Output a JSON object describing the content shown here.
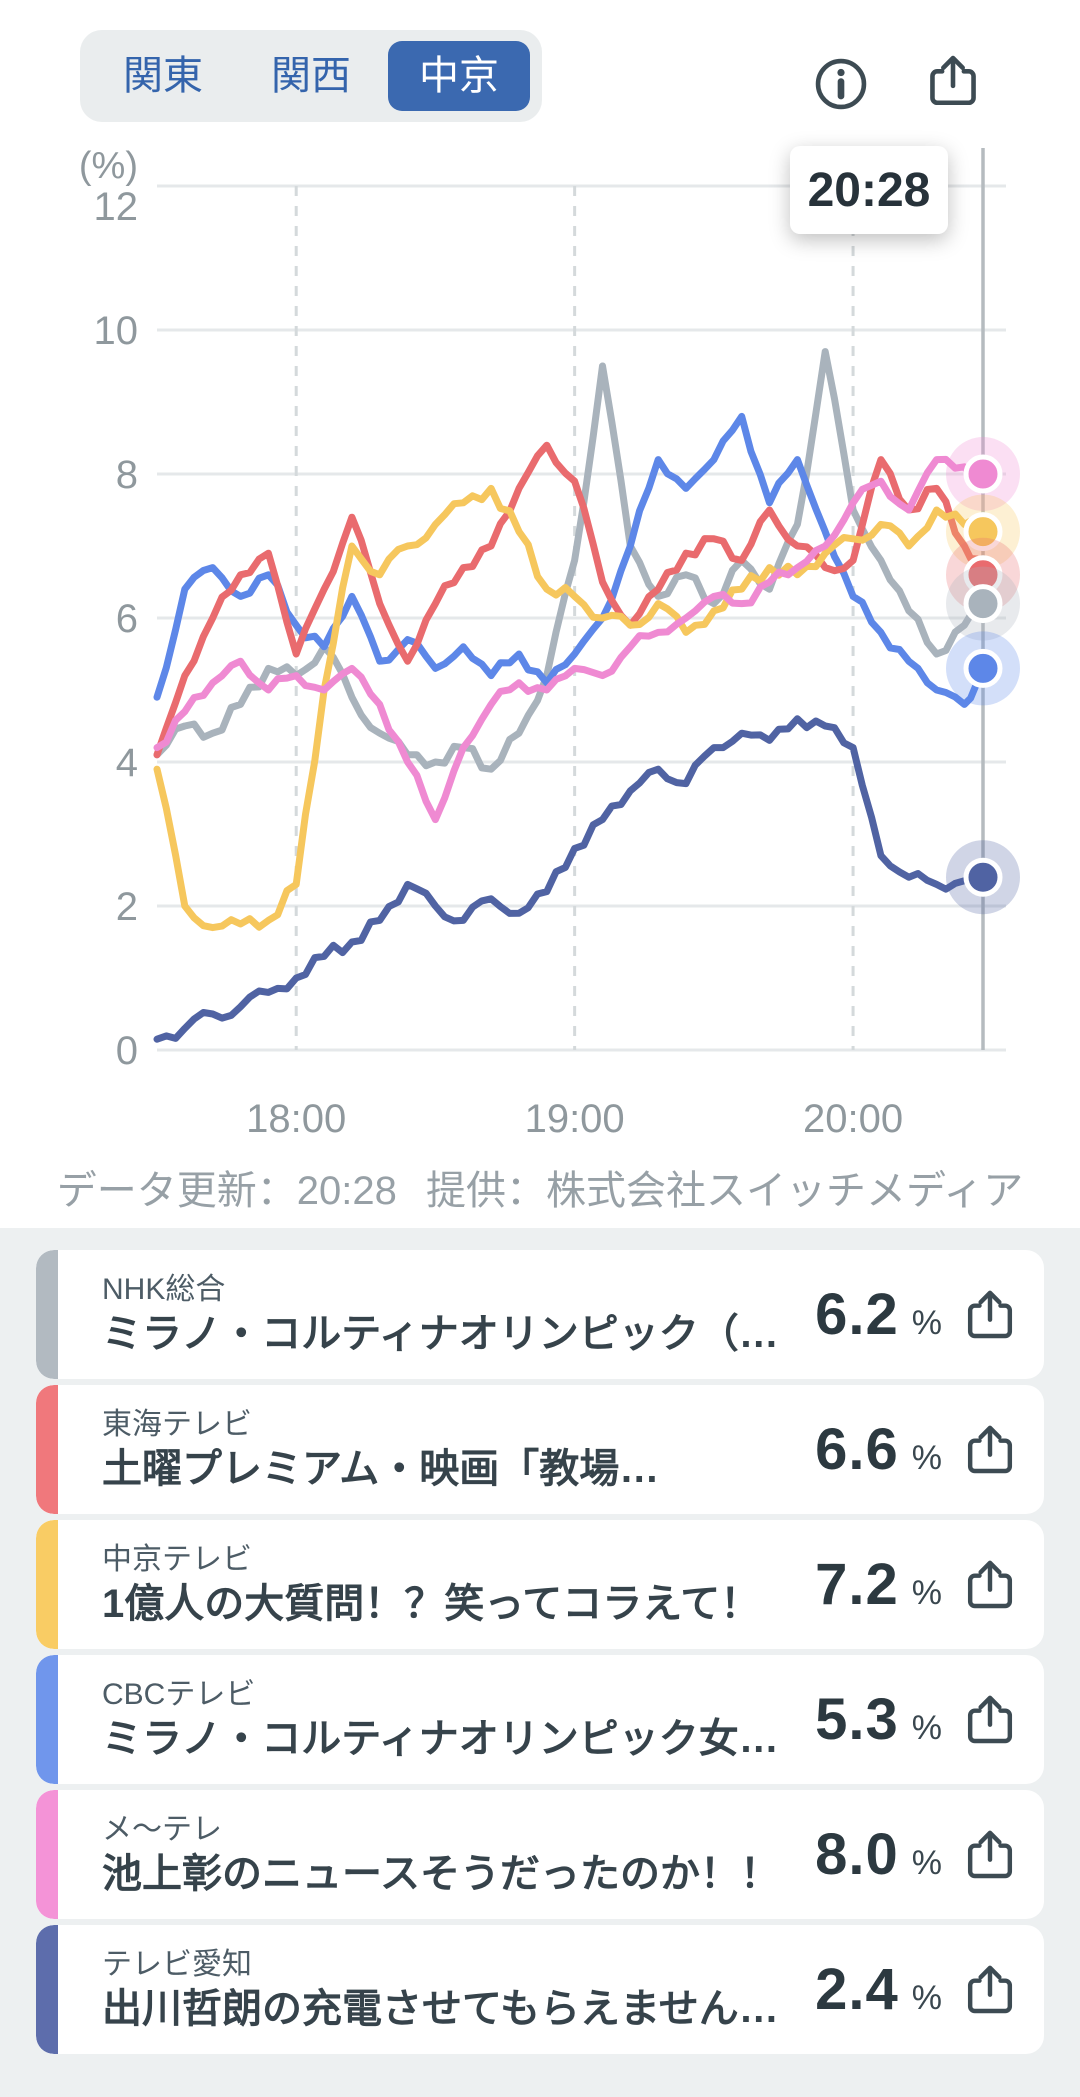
{
  "tabs": {
    "items": [
      {
        "label": "関東",
        "selected": false
      },
      {
        "label": "関西",
        "selected": false
      },
      {
        "label": "中京",
        "selected": true
      }
    ],
    "selected_bg": "#3b69b0"
  },
  "header": {
    "time_badge": "20:28",
    "info_icon": "info-icon",
    "share_icon": "share-icon"
  },
  "footer": {
    "updated": "データ更新：20:28",
    "provider": "提供：株式会社スイッチメディア"
  },
  "chart_data": {
    "type": "line",
    "unit_label": "(%)",
    "ylim": [
      0,
      12
    ],
    "y_ticks": [
      0,
      2,
      4,
      6,
      8,
      10,
      12
    ],
    "x_ticks": [
      {
        "label": "18:00",
        "min": 30
      },
      {
        "label": "19:00",
        "min": 90
      },
      {
        "label": "20:00",
        "min": 150
      }
    ],
    "x_range_min": [
      0,
      178
    ],
    "cursor_min": 178,
    "cursor_label": "20:28",
    "grid_color": "#e5e8ea",
    "dash_color": "#d4d9db",
    "cursor_color": "#b5bbbf",
    "axis_text_color": "#8f989d",
    "x_min": [
      0,
      6,
      12,
      18,
      24,
      30,
      36,
      42,
      48,
      54,
      60,
      66,
      72,
      78,
      84,
      90,
      96,
      102,
      108,
      114,
      120,
      126,
      132,
      138,
      144,
      150,
      156,
      162,
      168,
      174,
      178
    ],
    "series": [
      {
        "name": "NHK総合",
        "color": "#a9b3bc",
        "values": [
          4.1,
          4.5,
          4.4,
          4.8,
          5.3,
          5.2,
          5.6,
          4.9,
          4.4,
          4.1,
          4.0,
          4.2,
          3.9,
          4.4,
          5.2,
          6.8,
          9.5,
          7.0,
          6.3,
          6.6,
          6.2,
          6.8,
          6.4,
          7.3,
          9.7,
          7.5,
          6.8,
          6.1,
          5.5,
          5.9,
          6.2
        ]
      },
      {
        "name": "CBCテレビ",
        "color": "#5d87e8",
        "values": [
          4.9,
          6.4,
          6.7,
          6.3,
          6.6,
          5.9,
          5.6,
          6.3,
          5.4,
          5.7,
          5.3,
          5.6,
          5.2,
          5.5,
          5.1,
          5.5,
          6.0,
          7.0,
          8.2,
          7.8,
          8.2,
          8.8,
          7.6,
          8.2,
          7.2,
          6.3,
          5.8,
          5.4,
          5.0,
          4.8,
          5.3
        ]
      },
      {
        "name": "東海テレビ",
        "color": "#e96b6e",
        "values": [
          4.1,
          5.2,
          6.0,
          6.6,
          6.9,
          5.5,
          6.4,
          7.4,
          6.2,
          5.4,
          6.2,
          6.7,
          7.0,
          7.8,
          8.4,
          7.9,
          6.5,
          5.9,
          6.4,
          6.9,
          7.1,
          6.8,
          7.5,
          7.0,
          6.7,
          6.8,
          8.2,
          7.5,
          7.8,
          7.0,
          6.6
        ]
      },
      {
        "name": "中京テレビ",
        "color": "#f6c75d",
        "values": [
          3.9,
          2.0,
          1.7,
          1.75,
          1.8,
          2.3,
          5.0,
          7.0,
          6.6,
          7.0,
          7.3,
          7.6,
          7.8,
          7.2,
          6.4,
          6.3,
          6.0,
          5.9,
          6.2,
          5.8,
          6.1,
          6.4,
          6.7,
          6.6,
          6.9,
          7.1,
          7.3,
          7.0,
          7.5,
          7.3,
          7.2
        ]
      },
      {
        "name": "テレビ愛知",
        "color": "#5063a3",
        "values": [
          0.15,
          0.3,
          0.5,
          0.6,
          0.8,
          1.0,
          1.3,
          1.5,
          1.8,
          2.3,
          2.0,
          1.8,
          2.1,
          1.9,
          2.2,
          2.8,
          3.2,
          3.6,
          3.9,
          3.7,
          4.2,
          4.4,
          4.3,
          4.6,
          4.5,
          4.2,
          2.7,
          2.4,
          2.3,
          2.35,
          2.4
        ]
      },
      {
        "name": "メ〜テレ",
        "color": "#ef8ad2",
        "values": [
          4.2,
          4.7,
          5.1,
          5.4,
          5.0,
          5.2,
          5.0,
          5.3,
          4.8,
          4.0,
          3.2,
          4.2,
          4.8,
          5.1,
          5.0,
          5.3,
          5.2,
          5.6,
          5.8,
          6.0,
          6.3,
          6.2,
          6.5,
          6.7,
          7.0,
          7.6,
          7.9,
          7.5,
          8.2,
          8.1,
          8.0
        ]
      }
    ]
  },
  "channels": [
    {
      "name": "NHK総合",
      "program": "ミラノ・コルティナオリンピック（…",
      "value": "6.2",
      "unit": "%",
      "accent": "#b2bac1"
    },
    {
      "name": "東海テレビ",
      "program": "土曜プレミアム・映画「教場…",
      "value": "6.6",
      "unit": "%",
      "accent": "#f0787c"
    },
    {
      "name": "中京テレビ",
      "program": "1億人の大質問！？笑ってコラえて！",
      "value": "7.2",
      "unit": "%",
      "accent": "#f9cc64"
    },
    {
      "name": "CBCテレビ",
      "program": "ミラノ・コルティナオリンピック女…",
      "value": "5.3",
      "unit": "%",
      "accent": "#7096ec"
    },
    {
      "name": "メ〜テレ",
      "program": "池上彰のニュースそうだったのか！！",
      "value": "8.0",
      "unit": "%",
      "accent": "#f493d7"
    },
    {
      "name": "テレビ愛知",
      "program": "出川哲朗の充電させてもらえません…",
      "value": "2.4",
      "unit": "%",
      "accent": "#5d6dac"
    }
  ]
}
